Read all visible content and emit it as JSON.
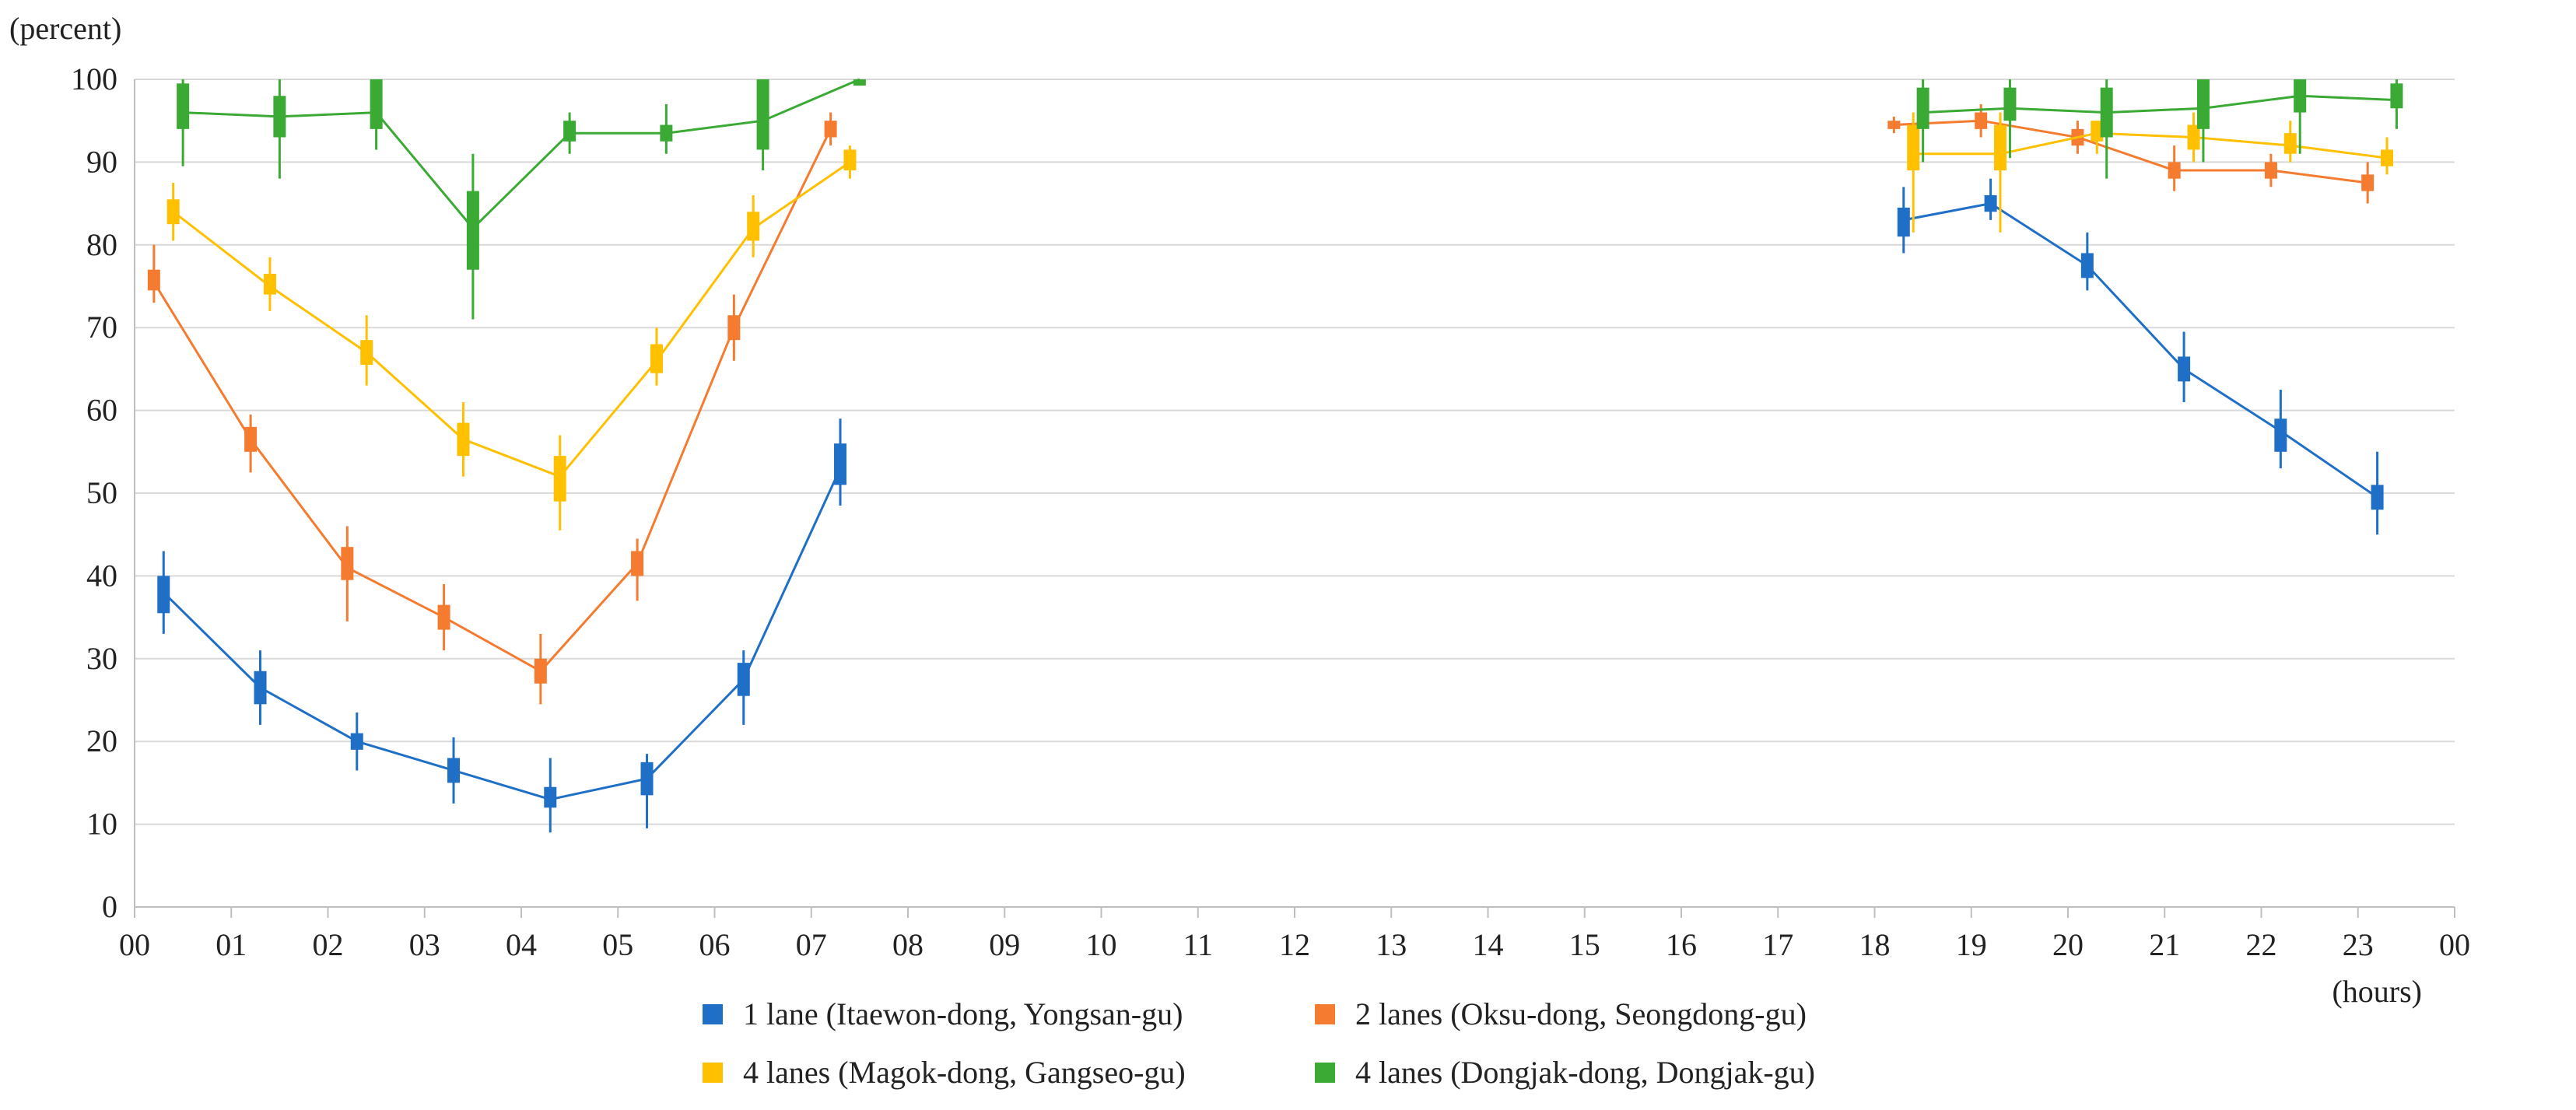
{
  "chart_data": {
    "type": "line",
    "ylabel": "(percent)",
    "xlabel": "(hours)",
    "ylim": [
      0,
      100
    ],
    "xlim": [
      0,
      24
    ],
    "y_ticks": [
      "0",
      "10",
      "20",
      "30",
      "40",
      "50",
      "60",
      "70",
      "80",
      "90",
      "100"
    ],
    "x_ticks": [
      "00",
      "01",
      "02",
      "03",
      "04",
      "05",
      "06",
      "07",
      "08",
      "09",
      "10",
      "11",
      "12",
      "13",
      "14",
      "15",
      "16",
      "17",
      "18",
      "19",
      "20",
      "21",
      "22",
      "23",
      "00"
    ],
    "grid": "horizontal",
    "legend_position": "bottom",
    "series": [
      {
        "name": "1 lane (Itaewon-dong, Yongsan-gu)",
        "color": "#1f6fc7",
        "points": [
          {
            "x": 0.3,
            "y": 38,
            "lo": 33,
            "hi": 43,
            "b0": 35.5,
            "b1": 40
          },
          {
            "x": 1.3,
            "y": 26.5,
            "lo": 22,
            "hi": 31,
            "b0": 24.5,
            "b1": 28.5
          },
          {
            "x": 2.3,
            "y": 20,
            "lo": 16.5,
            "hi": 23.5,
            "b0": 19,
            "b1": 21
          },
          {
            "x": 3.3,
            "y": 16.5,
            "lo": 12.5,
            "hi": 20.5,
            "b0": 15,
            "b1": 18
          },
          {
            "x": 4.3,
            "y": 13,
            "lo": 9,
            "hi": 18,
            "b0": 12,
            "b1": 14.5
          },
          {
            "x": 5.3,
            "y": 15.5,
            "lo": 9.5,
            "hi": 18.5,
            "b0": 13.5,
            "b1": 17.5
          },
          {
            "x": 6.3,
            "y": 27.5,
            "lo": 22,
            "hi": 31,
            "b0": 25.5,
            "b1": 29.5
          },
          {
            "x": 7.3,
            "y": 53,
            "lo": 48.5,
            "hi": 59,
            "b0": 51,
            "b1": 56
          },
          {
            "x": 18.3,
            "y": 83,
            "lo": 79,
            "hi": 87,
            "b0": 81,
            "b1": 84.5
          },
          {
            "x": 19.2,
            "y": 85,
            "lo": 83,
            "hi": 88,
            "b0": 84,
            "b1": 86
          },
          {
            "x": 20.2,
            "y": 77.5,
            "lo": 74.5,
            "hi": 81.5,
            "b0": 76,
            "b1": 79
          },
          {
            "x": 21.2,
            "y": 65,
            "lo": 61,
            "hi": 69.5,
            "b0": 63.5,
            "b1": 66.5
          },
          {
            "x": 22.2,
            "y": 57.5,
            "lo": 53,
            "hi": 62.5,
            "b0": 55,
            "b1": 59
          },
          {
            "x": 23.2,
            "y": 49.5,
            "lo": 45,
            "hi": 55,
            "b0": 48,
            "b1": 51
          }
        ]
      },
      {
        "name": "2 lanes (Oksu-dong, Seongdong-gu)",
        "color": "#f47b2f",
        "points": [
          {
            "x": 0.2,
            "y": 75.5,
            "lo": 73,
            "hi": 80,
            "b0": 74.5,
            "b1": 77
          },
          {
            "x": 1.2,
            "y": 56.5,
            "lo": 52.5,
            "hi": 59.5,
            "b0": 55,
            "b1": 58
          },
          {
            "x": 2.2,
            "y": 41,
            "lo": 34.5,
            "hi": 46,
            "b0": 39.5,
            "b1": 43.5
          },
          {
            "x": 3.2,
            "y": 35,
            "lo": 31,
            "hi": 39,
            "b0": 33.5,
            "b1": 36.5
          },
          {
            "x": 4.2,
            "y": 28.5,
            "lo": 24.5,
            "hi": 33,
            "b0": 27,
            "b1": 30
          },
          {
            "x": 5.2,
            "y": 41.5,
            "lo": 37,
            "hi": 44.5,
            "b0": 40,
            "b1": 43
          },
          {
            "x": 6.2,
            "y": 70,
            "lo": 66,
            "hi": 74,
            "b0": 68.5,
            "b1": 71.5
          },
          {
            "x": 7.2,
            "y": 94,
            "lo": 92,
            "hi": 96,
            "b0": 93,
            "b1": 95
          },
          {
            "x": 18.2,
            "y": 94.5,
            "lo": 93.5,
            "hi": 95.5,
            "b0": 94,
            "b1": 95
          },
          {
            "x": 19.1,
            "y": 95,
            "lo": 93,
            "hi": 97,
            "b0": 94,
            "b1": 96
          },
          {
            "x": 20.1,
            "y": 93,
            "lo": 91,
            "hi": 95,
            "b0": 92,
            "b1": 94
          },
          {
            "x": 21.1,
            "y": 89,
            "lo": 86.5,
            "hi": 92,
            "b0": 88,
            "b1": 90
          },
          {
            "x": 22.1,
            "y": 89,
            "lo": 87,
            "hi": 91,
            "b0": 88,
            "b1": 90
          },
          {
            "x": 23.1,
            "y": 87.5,
            "lo": 85,
            "hi": 90,
            "b0": 86.5,
            "b1": 88.5
          }
        ]
      },
      {
        "name": "4 lanes (Magok-dong, Gangseo-gu)",
        "color": "#ffc000",
        "points": [
          {
            "x": 0.4,
            "y": 84,
            "lo": 80.5,
            "hi": 87.5,
            "b0": 82.5,
            "b1": 85.5
          },
          {
            "x": 1.4,
            "y": 75,
            "lo": 72,
            "hi": 78.5,
            "b0": 74,
            "b1": 76.5
          },
          {
            "x": 2.4,
            "y": 67,
            "lo": 63,
            "hi": 71.5,
            "b0": 65.5,
            "b1": 68.5
          },
          {
            "x": 3.4,
            "y": 56.5,
            "lo": 52,
            "hi": 61,
            "b0": 54.5,
            "b1": 58.5
          },
          {
            "x": 4.4,
            "y": 52,
            "lo": 45.5,
            "hi": 57,
            "b0": 49,
            "b1": 54.5
          },
          {
            "x": 5.4,
            "y": 66,
            "lo": 63,
            "hi": 70,
            "b0": 64.5,
            "b1": 68
          },
          {
            "x": 6.4,
            "y": 82,
            "lo": 78.5,
            "hi": 86,
            "b0": 80.5,
            "b1": 84
          },
          {
            "x": 7.4,
            "y": 90,
            "lo": 88,
            "hi": 92,
            "b0": 89,
            "b1": 91.5
          },
          {
            "x": 18.4,
            "y": 91,
            "lo": 81.5,
            "hi": 96,
            "b0": 89,
            "b1": 94.5
          },
          {
            "x": 19.3,
            "y": 91,
            "lo": 81.5,
            "hi": 96,
            "b0": 89,
            "b1": 94.5
          },
          {
            "x": 20.3,
            "y": 93.5,
            "lo": 91,
            "hi": 95,
            "b0": 92.5,
            "b1": 95
          },
          {
            "x": 21.3,
            "y": 93,
            "lo": 90,
            "hi": 96,
            "b0": 91.5,
            "b1": 94.5
          },
          {
            "x": 22.3,
            "y": 92,
            "lo": 90,
            "hi": 95,
            "b0": 91,
            "b1": 93.5
          },
          {
            "x": 23.3,
            "y": 90.5,
            "lo": 88.5,
            "hi": 93,
            "b0": 89.5,
            "b1": 91.5
          }
        ]
      },
      {
        "name": "4 lanes (Dongjak-dong, Dongjak-gu)",
        "color": "#3aaa35",
        "points": [
          {
            "x": 0.5,
            "y": 96,
            "lo": 89.5,
            "hi": 100,
            "b0": 94,
            "b1": 99.5
          },
          {
            "x": 1.5,
            "y": 95.5,
            "lo": 88,
            "hi": 100,
            "b0": 93,
            "b1": 98
          },
          {
            "x": 2.5,
            "y": 96,
            "lo": 91.5,
            "hi": 100,
            "b0": 94,
            "b1": 100
          },
          {
            "x": 3.5,
            "y": 82,
            "lo": 71,
            "hi": 91,
            "b0": 77,
            "b1": 86.5
          },
          {
            "x": 4.5,
            "y": 93.5,
            "lo": 91,
            "hi": 96,
            "b0": 92.5,
            "b1": 95
          },
          {
            "x": 5.5,
            "y": 93.5,
            "lo": 91,
            "hi": 97,
            "b0": 92.5,
            "b1": 94.5
          },
          {
            "x": 6.5,
            "y": 95,
            "lo": 89,
            "hi": 100,
            "b0": 91.5,
            "b1": 100
          },
          {
            "x": 7.5,
            "y": 100,
            "lo": 99.5,
            "hi": 100,
            "b0": 99.5,
            "b1": 100
          },
          {
            "x": 18.5,
            "y": 96,
            "lo": 90,
            "hi": 100,
            "b0": 94,
            "b1": 99
          },
          {
            "x": 19.4,
            "y": 96.5,
            "lo": 90.5,
            "hi": 100,
            "b0": 95,
            "b1": 99
          },
          {
            "x": 20.4,
            "y": 96,
            "lo": 88,
            "hi": 100,
            "b0": 93,
            "b1": 99
          },
          {
            "x": 21.4,
            "y": 96.5,
            "lo": 90,
            "hi": 100,
            "b0": 94,
            "b1": 100
          },
          {
            "x": 22.4,
            "y": 98,
            "lo": 91,
            "hi": 100,
            "b0": 96,
            "b1": 100
          },
          {
            "x": 23.4,
            "y": 97.5,
            "lo": 94,
            "hi": 100,
            "b0": 96.5,
            "b1": 99.5
          }
        ]
      }
    ]
  }
}
